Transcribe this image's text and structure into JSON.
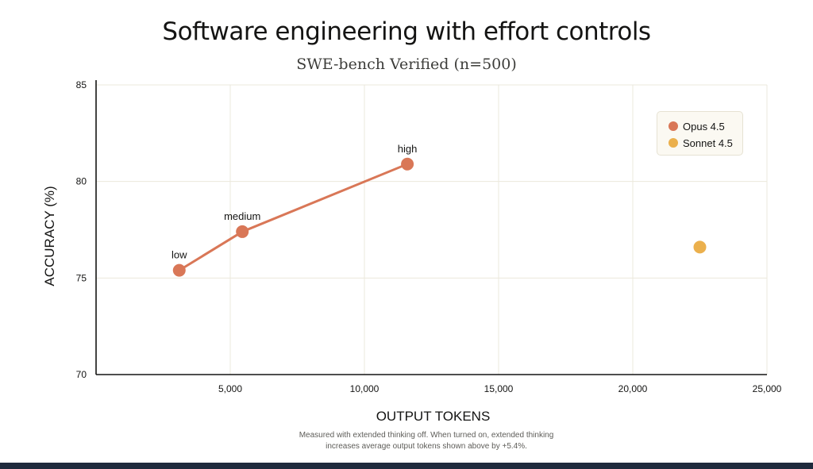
{
  "title": "Software engineering with effort controls",
  "subtitle": "SWE-bench Verified (n=500)",
  "footnote": {
    "line1": "Measured with extended thinking off. When turned on, extended thinking",
    "line2": "increases average output tokens shown above by +5.4%."
  },
  "chart_data": {
    "type": "scatter",
    "title": "Software engineering with effort controls",
    "subtitle": "SWE-bench Verified (n=500)",
    "xlabel": "OUTPUT TOKENS",
    "ylabel": "ACCURACY (%)",
    "xlim": [
      0,
      25000
    ],
    "ylim": [
      70,
      85
    ],
    "xticks": [
      5000,
      10000,
      15000,
      20000,
      25000
    ],
    "xtick_labels": [
      "5,000",
      "10,000",
      "15,000",
      "20,000",
      "25,000"
    ],
    "yticks": [
      70,
      75,
      80,
      85
    ],
    "ytick_labels": [
      "70",
      "75",
      "80",
      "85"
    ],
    "grid": true,
    "legend_position": "top-right",
    "series": [
      {
        "name": "Opus 4.5",
        "color": "#d97757",
        "connected": true,
        "points": [
          {
            "x": 3100,
            "y": 75.4,
            "label": "low"
          },
          {
            "x": 5450,
            "y": 77.4,
            "label": "medium"
          },
          {
            "x": 11600,
            "y": 80.9,
            "label": "high"
          }
        ]
      },
      {
        "name": "Sonnet 4.5",
        "color": "#ebb04d",
        "connected": false,
        "points": [
          {
            "x": 22500,
            "y": 76.6,
            "label": ""
          }
        ]
      }
    ]
  }
}
